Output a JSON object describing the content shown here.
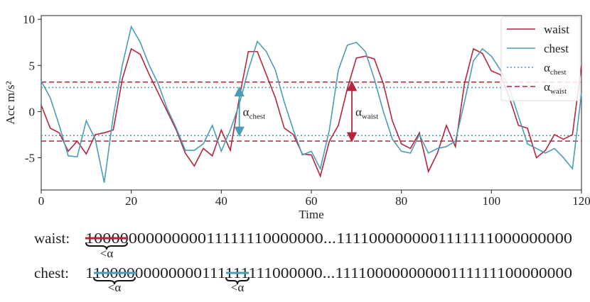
{
  "chart_data": {
    "type": "line",
    "xlabel": "Time",
    "ylabel": "Acc m/s²",
    "x": [
      0,
      2,
      4,
      6,
      8,
      10,
      12,
      14,
      16,
      18,
      20,
      22,
      24,
      26,
      28,
      30,
      32,
      34,
      36,
      38,
      40,
      42,
      44,
      46,
      48,
      50,
      52,
      54,
      56,
      58,
      60,
      62,
      64,
      66,
      68,
      70,
      72,
      74,
      76,
      78,
      80,
      82,
      84,
      86,
      88,
      90,
      92,
      94,
      96,
      98,
      100,
      102,
      104,
      106,
      108,
      110,
      112,
      114,
      116,
      118,
      120
    ],
    "series": [
      {
        "name": "waist",
        "color": "#b5253d",
        "values": [
          0.7,
          -1.8,
          -2.3,
          -4.3,
          -3.2,
          -4.6,
          -2.5,
          -2.3,
          -2.0,
          3.5,
          6.8,
          6.2,
          4.0,
          2.0,
          0.0,
          -2.0,
          -4.5,
          -5.9,
          -4.0,
          -4.8,
          -2.0,
          -4.2,
          1.5,
          6.5,
          6.5,
          4.0,
          1.5,
          -1.8,
          -2.5,
          -4.6,
          -4.7,
          -7.0,
          -3.2,
          -1.5,
          2.5,
          5.8,
          6.0,
          5.7,
          3.0,
          -1.0,
          -3.5,
          -4.0,
          -2.3,
          -6.5,
          -4.5,
          -1.5,
          -3.8,
          3.0,
          6.8,
          6.3,
          4.4,
          4.0,
          1.5,
          -1.5,
          -1.8,
          -5.0,
          -4.2,
          -2.5,
          -3.0,
          -2.5,
          5.0
        ]
      },
      {
        "name": "chest",
        "color": "#4a9db5",
        "values": [
          3.3,
          1.5,
          -1.5,
          -4.8,
          -4.9,
          -1.0,
          -3.0,
          -7.7,
          -0.5,
          5.0,
          9.2,
          7.5,
          5.0,
          3.0,
          0.3,
          -1.8,
          -4.2,
          -4.2,
          -3.5,
          -1.5,
          -4.3,
          -2.0,
          0.8,
          4.5,
          7.6,
          6.5,
          4.5,
          1.0,
          -2.0,
          -4.7,
          -4.3,
          -6.2,
          -2.0,
          4.5,
          7.2,
          7.5,
          6.5,
          3.5,
          0.0,
          -3.0,
          -4.3,
          -4.5,
          -2.5,
          -4.5,
          -4.0,
          -3.8,
          -3.2,
          1.0,
          5.5,
          6.8,
          6.0,
          4.5,
          2.5,
          -0.5,
          -3.5,
          -4.0,
          -4.5,
          -4.0,
          -5.0,
          -6.2,
          2.0
        ]
      }
    ],
    "thresholds": [
      {
        "name": "α",
        "subscript": "chest",
        "color": "#4a9db5",
        "style": "dotted",
        "values": [
          2.6,
          -2.6
        ]
      },
      {
        "name": "α",
        "subscript": "waist",
        "color": "#b5253d",
        "style": "dashed",
        "values": [
          3.2,
          -3.2
        ]
      }
    ],
    "annotations": [
      {
        "x": 44,
        "threshold": 0,
        "text": "α",
        "subscript": "chest"
      },
      {
        "x": 69,
        "threshold": 1,
        "text": "α",
        "subscript": "waist"
      }
    ],
    "xlim": [
      0,
      120
    ],
    "ylim": [
      -8.5,
      10.4
    ],
    "xticks": [
      0,
      20,
      40,
      60,
      80,
      100,
      120
    ],
    "yticks": [
      -5,
      0,
      5,
      10
    ],
    "legend": "upper right"
  },
  "sequences": [
    {
      "label": "waist:",
      "bits": "1000000000000011111110000000...1111000000001111111000000000",
      "notes": [
        "<α"
      ]
    },
    {
      "label": "chest:",
      "bits": "11000000000000111111111000000...11110000000000111111100000000",
      "notes": [
        "<α",
        "<α"
      ]
    }
  ]
}
